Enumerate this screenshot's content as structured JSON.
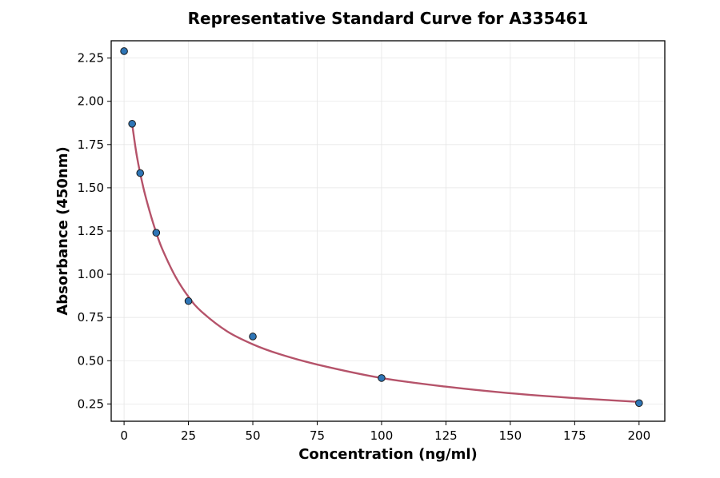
{
  "chart_data": {
    "type": "scatter",
    "title": "Representative Standard Curve for A335461",
    "xlabel": "Concentration (ng/ml)",
    "ylabel": "Absorbance (450nm)",
    "xlim": [
      -5,
      210
    ],
    "ylim": [
      0.15,
      2.35
    ],
    "xticks": [
      0,
      25,
      50,
      75,
      100,
      125,
      150,
      175,
      200
    ],
    "xtick_labels": [
      "0",
      "25",
      "50",
      "75",
      "100",
      "125",
      "150",
      "175",
      "200"
    ],
    "yticks": [
      0.25,
      0.5,
      0.75,
      1.0,
      1.25,
      1.5,
      1.75,
      2.0,
      2.25
    ],
    "ytick_labels": [
      "0.25",
      "0.50",
      "0.75",
      "1.00",
      "1.25",
      "1.50",
      "1.75",
      "2.00",
      "2.25"
    ],
    "grid": true,
    "series": [
      {
        "kind": "points",
        "x": [
          0,
          3.125,
          6.25,
          12.5,
          25,
          50,
          100,
          200
        ],
        "y": [
          2.29,
          1.87,
          1.585,
          1.24,
          0.845,
          0.64,
          0.4,
          0.255
        ]
      },
      {
        "kind": "fit-curve",
        "x": [
          3.125,
          5,
          7.5,
          10,
          12.5,
          15,
          20,
          25,
          30,
          40,
          50,
          60,
          75,
          100,
          125,
          150,
          175,
          200
        ],
        "y": [
          1.87,
          1.68,
          1.5,
          1.36,
          1.24,
          1.14,
          0.985,
          0.87,
          0.785,
          0.67,
          0.595,
          0.54,
          0.478,
          0.4,
          0.35,
          0.312,
          0.284,
          0.262
        ]
      }
    ],
    "colors": {
      "point_fill": "#2e75b6",
      "point_edge": "#1a1a1a",
      "curve": "#b5536a",
      "grid": "#e6e6e6",
      "axes": "#000000"
    }
  }
}
